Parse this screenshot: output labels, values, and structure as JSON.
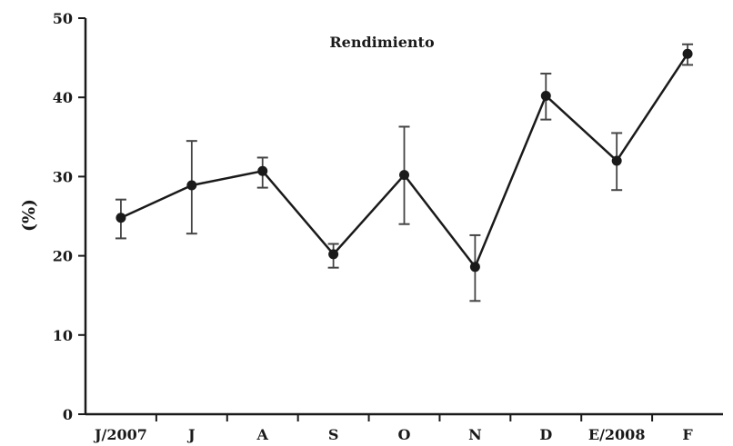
{
  "chart_data": {
    "type": "line",
    "title": "Rendimiento",
    "xlabel": "",
    "ylabel": "(%)",
    "categories": [
      "J/2007",
      "J",
      "A",
      "S",
      "O",
      "N",
      "D",
      "E/2008",
      "F"
    ],
    "series": [
      {
        "values": [
          24.8,
          28.9,
          30.7,
          20.2,
          30.2,
          18.6,
          40.2,
          32.0,
          45.5
        ],
        "error_high": [
          27.1,
          34.5,
          32.4,
          21.5,
          36.3,
          22.6,
          43.0,
          35.5,
          46.7
        ],
        "error_low": [
          22.2,
          22.8,
          28.6,
          18.5,
          24.0,
          14.3,
          37.2,
          28.3,
          44.1
        ]
      }
    ],
    "yticks": [
      0,
      10,
      20,
      30,
      40,
      50
    ],
    "ylim": [
      0,
      50
    ],
    "grid": false,
    "legend": "none"
  }
}
